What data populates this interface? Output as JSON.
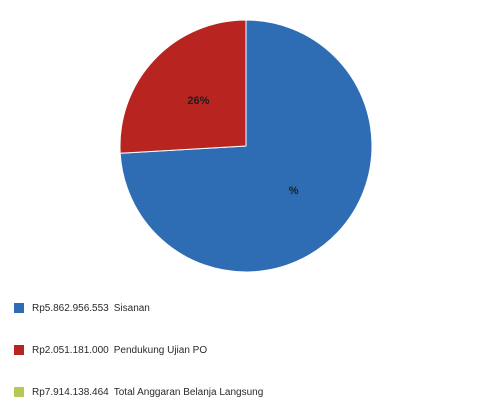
{
  "chart_data": {
    "type": "pie",
    "title": "",
    "slices": [
      {
        "value_text": "Rp5.862.956.553",
        "label": "Sisanan",
        "value": 5862956553,
        "color": "#2e6db4",
        "percent_label": "%"
      },
      {
        "value_text": "Rp2.051.181.000",
        "label": "Pendukung Ujian PO",
        "value": 2051181000,
        "color": "#b82420",
        "percent_label": "26%"
      },
      {
        "value_text": "Rp7.914.138.464",
        "label": "Total Anggaran Belanja Langsung",
        "value": 0,
        "color": "#b5c957",
        "percent_label": ""
      }
    ],
    "legend_position": "bottom"
  }
}
